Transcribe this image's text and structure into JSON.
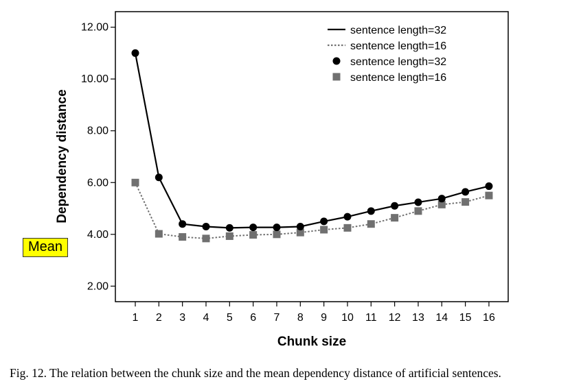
{
  "chart_data": {
    "type": "line",
    "xlabel": "Chunk size",
    "ylabel": "Dependency distance",
    "x": [
      1,
      2,
      3,
      4,
      5,
      6,
      7,
      8,
      9,
      10,
      11,
      12,
      13,
      14,
      15,
      16
    ],
    "x_tick_labels": [
      "1",
      "2",
      "3",
      "4",
      "5",
      "6",
      "7",
      "8",
      "9",
      "10",
      "11",
      "12",
      "13",
      "14",
      "15",
      "16"
    ],
    "y_tick_labels": [
      "2.00",
      "4.00",
      "6.00",
      "8.00",
      "10.00",
      "12.00"
    ],
    "y_ticks": [
      2,
      4,
      6,
      8,
      10,
      12
    ],
    "ylim": [
      1.4,
      12.6
    ],
    "grid": false,
    "legend_position": "top-right",
    "legend": [
      {
        "label": "sentence length=32",
        "kind": "line"
      },
      {
        "label": "sentence length=16",
        "kind": "line"
      },
      {
        "label": "sentence length=32",
        "kind": "marker"
      },
      {
        "label": "sentence length=16",
        "kind": "marker"
      }
    ],
    "series": [
      {
        "name": "sentence length=32",
        "color": "#000000",
        "line_style": "solid",
        "marker": "circle",
        "values": [
          11.0,
          6.2,
          4.4,
          4.3,
          4.25,
          4.27,
          4.27,
          4.3,
          4.5,
          4.68,
          4.9,
          5.1,
          5.24,
          5.38,
          5.64,
          5.86
        ]
      },
      {
        "name": "sentence length=16",
        "color": "#707070",
        "line_style": "dotted",
        "marker": "square",
        "values": [
          6.0,
          4.02,
          3.9,
          3.84,
          3.93,
          3.98,
          4.0,
          4.07,
          4.18,
          4.25,
          4.4,
          4.64,
          4.9,
          5.15,
          5.25,
          5.5
        ]
      }
    ]
  },
  "annotation": {
    "text": "Mean",
    "background": "#ffff00"
  },
  "caption": "Fig. 12. The relation between the chunk size and the mean dependency distance of artificial sentences."
}
